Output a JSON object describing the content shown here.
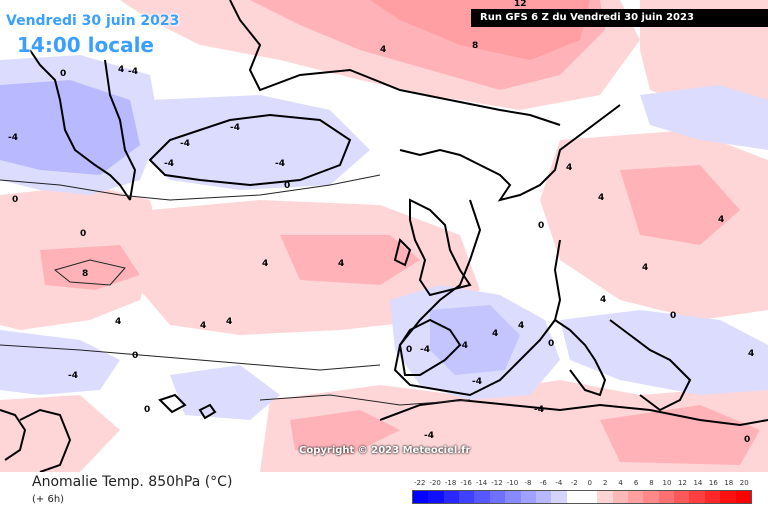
{
  "header": {
    "date": "Vendredi 30 juin 2023",
    "local_time": "14:00 locale",
    "run_info": "Run GFS 6 Z du Vendredi 30 juin 2023"
  },
  "copyright": "Copyright © 2023 Meteociel.fr",
  "footer": {
    "variable": "Anomalie Temp. 850hPa (°C)",
    "lead_time": "(+ 6h)"
  },
  "scale": {
    "labels": [
      "-22",
      "-20",
      "-18",
      "-16",
      "-14",
      "-12",
      "-10",
      "-8",
      "-6",
      "-4",
      "-2",
      "0",
      "2",
      "4",
      "6",
      "8",
      "10",
      "12",
      "14",
      "16",
      "18",
      "20"
    ],
    "colors": [
      "#0000ff",
      "#1010ff",
      "#2828ff",
      "#4040ff",
      "#5858ff",
      "#7070ff",
      "#8888ff",
      "#a0a0ff",
      "#b8b8ff",
      "#d4d4ff",
      "#ffffff",
      "#ffffff",
      "#ffd4d4",
      "#ffb8b8",
      "#ffa0a0",
      "#ff8888",
      "#ff7070",
      "#ff5858",
      "#ff4040",
      "#ff2828",
      "#ff1010",
      "#ff0000"
    ]
  },
  "contour_labels": [
    "0",
    "4",
    "-4",
    "8",
    "12"
  ],
  "colors": {
    "warm_light": "#ffd6d8",
    "warm_mid": "#ffb3b8",
    "warm_strong": "#ff8f94",
    "cold_light": "#dcdcff",
    "cold_mid": "#b9b9ff",
    "coast": "#000000",
    "title_blue": "#3aa0ff"
  }
}
